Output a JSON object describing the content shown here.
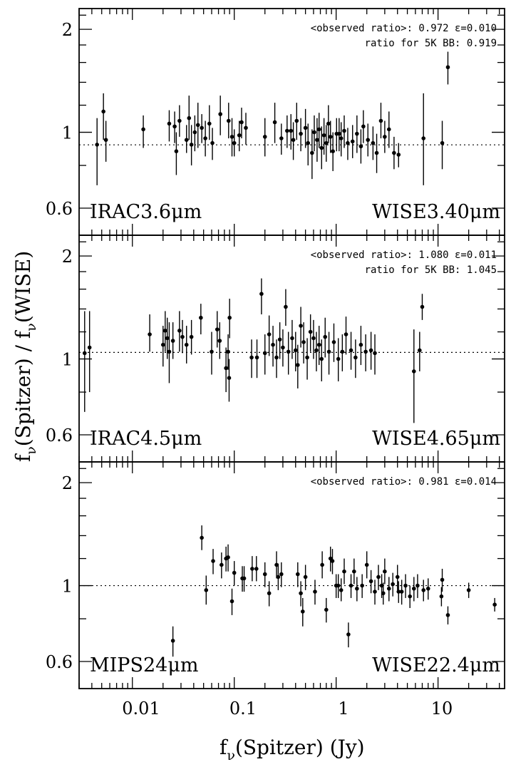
{
  "figure": {
    "xlabel": "f",
    "xlabel_sub": "ν",
    "xlabel_rest": "(Spitzer) (Jy)",
    "ylabel": "f",
    "ylabel_sub": "ν",
    "ylabel_mid": "(Spitzer) / f",
    "ylabel_sub2": "ν",
    "ylabel_rest": "(WISE)"
  },
  "chart_data": [
    {
      "type": "scatter",
      "panel": "top",
      "left_label": "IRAC3.6μm",
      "right_label": "WISE3.40μm",
      "annotation_line1": "<observed ratio>: 0.972 ε=0.010",
      "annotation_line2": "ratio for 5K BB: 0.919",
      "reference_line": 0.919,
      "xscale": "log",
      "yscale": "log",
      "xlim": [
        0.003,
        45
      ],
      "ylim": [
        0.5,
        2.3
      ],
      "yticklabels": [
        "0.6",
        "1",
        "2"
      ],
      "points": [
        [
          0.0045,
          0.92,
          0.7,
          1.1
        ],
        [
          0.0052,
          1.15,
          0.95,
          1.3
        ],
        [
          0.0055,
          0.95,
          0.82,
          1.08
        ],
        [
          0.0128,
          1.02,
          0.9,
          1.12
        ],
        [
          0.023,
          1.06,
          0.94,
          1.16
        ],
        [
          0.027,
          0.88,
          0.75,
          1.0
        ],
        [
          0.026,
          1.04,
          0.93,
          1.15
        ],
        [
          0.029,
          1.08,
          0.97,
          1.2
        ],
        [
          0.034,
          0.95,
          0.87,
          1.05
        ],
        [
          0.036,
          1.1,
          0.95,
          1.28
        ],
        [
          0.038,
          0.92,
          0.8,
          1.05
        ],
        [
          0.041,
          1.0,
          0.88,
          1.12
        ],
        [
          0.044,
          1.05,
          0.9,
          1.22
        ],
        [
          0.048,
          1.03,
          0.93,
          1.13
        ],
        [
          0.052,
          0.96,
          0.85,
          1.08
        ],
        [
          0.057,
          1.06,
          0.95,
          1.2
        ],
        [
          0.061,
          0.93,
          0.83,
          1.03
        ],
        [
          0.073,
          1.13,
          0.98,
          1.28
        ],
        [
          0.088,
          1.08,
          0.96,
          1.22
        ],
        [
          0.095,
          0.97,
          0.85,
          1.1
        ],
        [
          0.1,
          0.93,
          0.85,
          1.02
        ],
        [
          0.112,
          0.98,
          0.88,
          1.08
        ],
        [
          0.118,
          1.07,
          0.96,
          1.18
        ],
        [
          0.13,
          1.03,
          0.92,
          1.14
        ],
        [
          0.2,
          0.97,
          0.85,
          1.1
        ],
        [
          0.25,
          1.07,
          0.93,
          1.22
        ],
        [
          0.29,
          0.96,
          0.86,
          1.06
        ],
        [
          0.33,
          1.01,
          0.9,
          1.12
        ],
        [
          0.36,
          1.01,
          0.89,
          1.13
        ],
        [
          0.38,
          0.95,
          0.83,
          1.07
        ],
        [
          0.41,
          1.08,
          0.95,
          1.22
        ],
        [
          0.45,
          0.99,
          0.88,
          1.1
        ],
        [
          0.5,
          1.03,
          0.9,
          1.17
        ],
        [
          0.53,
          0.93,
          0.8,
          1.06
        ],
        [
          0.58,
          0.87,
          0.73,
          1.02
        ],
        [
          0.61,
          1.0,
          0.88,
          1.12
        ],
        [
          0.65,
          0.95,
          0.82,
          1.1
        ],
        [
          0.68,
          1.02,
          0.9,
          1.14
        ],
        [
          0.72,
          0.9,
          0.78,
          1.04
        ],
        [
          0.76,
          0.98,
          0.86,
          1.1
        ],
        [
          0.8,
          0.93,
          0.82,
          1.05
        ],
        [
          0.84,
          1.06,
          0.93,
          1.2
        ],
        [
          0.88,
          0.97,
          0.87,
          1.08
        ],
        [
          0.93,
          0.88,
          0.77,
          1.0
        ],
        [
          1.01,
          0.99,
          0.88,
          1.1
        ],
        [
          1.07,
          0.99,
          0.88,
          1.1
        ],
        [
          1.12,
          0.96,
          0.85,
          1.07
        ],
        [
          1.2,
          1.01,
          0.9,
          1.12
        ],
        [
          1.3,
          0.93,
          0.83,
          1.03
        ],
        [
          1.45,
          0.94,
          0.84,
          1.05
        ],
        [
          1.6,
          0.99,
          0.87,
          1.12
        ],
        [
          1.75,
          0.91,
          0.81,
          1.02
        ],
        [
          1.85,
          1.04,
          0.93,
          1.16
        ],
        [
          2.05,
          0.95,
          0.85,
          1.06
        ],
        [
          2.3,
          0.93,
          0.83,
          1.04
        ],
        [
          2.5,
          0.87,
          0.76,
          0.99
        ],
        [
          2.75,
          1.08,
          0.96,
          1.22
        ],
        [
          3.0,
          0.97,
          0.87,
          1.08
        ],
        [
          3.3,
          1.02,
          0.9,
          1.15
        ],
        [
          3.7,
          0.87,
          0.78,
          0.97
        ],
        [
          4.1,
          0.86,
          0.79,
          0.93
        ],
        [
          7.2,
          0.96,
          0.7,
          1.3
        ],
        [
          11.0,
          0.93,
          0.78,
          1.08
        ],
        [
          12.5,
          1.55,
          1.38,
          1.72
        ]
      ]
    },
    {
      "type": "scatter",
      "panel": "middle",
      "left_label": "IRAC4.5μm",
      "right_label": "WISE4.65μm",
      "annotation_line1": "<observed ratio>: 1.080 ε=0.011",
      "annotation_line2": "ratio for 5K BB: 1.045",
      "reference_line": 1.045,
      "xscale": "log",
      "yscale": "log",
      "xlim": [
        0.003,
        45
      ],
      "ylim": [
        0.5,
        2.3
      ],
      "yticklabels": [
        "0.6",
        "1",
        "2"
      ],
      "points": [
        [
          0.0034,
          1.04,
          0.7,
          1.38
        ],
        [
          0.0038,
          1.08,
          0.8,
          1.38
        ],
        [
          0.0148,
          1.18,
          1.05,
          1.35
        ],
        [
          0.02,
          1.1,
          0.95,
          1.25
        ],
        [
          0.021,
          1.21,
          1.05,
          1.38
        ],
        [
          0.022,
          1.15,
          1.0,
          1.32
        ],
        [
          0.023,
          1.05,
          0.85,
          1.28
        ],
        [
          0.025,
          1.13,
          1.0,
          1.28
        ],
        [
          0.029,
          1.21,
          1.05,
          1.38
        ],
        [
          0.031,
          1.16,
          1.04,
          1.3
        ],
        [
          0.034,
          1.1,
          0.97,
          1.25
        ],
        [
          0.038,
          1.16,
          1.03,
          1.3
        ],
        [
          0.047,
          1.32,
          1.18,
          1.45
        ],
        [
          0.06,
          1.05,
          0.9,
          1.2
        ],
        [
          0.068,
          1.22,
          1.08,
          1.38
        ],
        [
          0.072,
          1.13,
          1.0,
          1.28
        ],
        [
          0.083,
          0.94,
          0.8,
          1.08
        ],
        [
          0.087,
          1.05,
          0.93,
          1.18
        ],
        [
          0.09,
          1.32,
          1.15,
          1.5
        ],
        [
          0.089,
          0.88,
          0.75,
          1.0
        ],
        [
          0.148,
          1.01,
          0.88,
          1.14
        ],
        [
          0.167,
          1.01,
          0.88,
          1.14
        ],
        [
          0.185,
          1.55,
          1.35,
          1.72
        ],
        [
          0.2,
          1.04,
          0.9,
          1.18
        ],
        [
          0.22,
          1.18,
          1.02,
          1.34
        ],
        [
          0.24,
          1.1,
          0.95,
          1.25
        ],
        [
          0.26,
          1.01,
          0.88,
          1.14
        ],
        [
          0.28,
          1.14,
          1.0,
          1.28
        ],
        [
          0.3,
          1.08,
          0.95,
          1.22
        ],
        [
          0.32,
          1.42,
          1.25,
          1.6
        ],
        [
          0.34,
          1.05,
          0.9,
          1.2
        ],
        [
          0.37,
          1.15,
          1.0,
          1.3
        ],
        [
          0.4,
          1.06,
          0.92,
          1.2
        ],
        [
          0.42,
          0.96,
          0.82,
          1.1
        ],
        [
          0.45,
          1.25,
          1.08,
          1.42
        ],
        [
          0.48,
          1.12,
          0.97,
          1.28
        ],
        [
          0.52,
          1.01,
          0.87,
          1.15
        ],
        [
          0.56,
          1.2,
          1.05,
          1.35
        ],
        [
          0.6,
          1.15,
          1.0,
          1.3
        ],
        [
          0.64,
          1.06,
          0.92,
          1.2
        ],
        [
          0.68,
          1.1,
          0.96,
          1.25
        ],
        [
          0.72,
          1.0,
          0.86,
          1.14
        ],
        [
          0.78,
          1.16,
          1.01,
          1.32
        ],
        [
          0.85,
          1.05,
          0.9,
          1.2
        ],
        [
          0.95,
          1.12,
          0.98,
          1.27
        ],
        [
          1.05,
          1.0,
          0.86,
          1.15
        ],
        [
          1.15,
          1.05,
          0.92,
          1.18
        ],
        [
          1.25,
          1.18,
          1.03,
          1.33
        ],
        [
          1.4,
          1.06,
          0.93,
          1.2
        ],
        [
          1.55,
          1.01,
          0.88,
          1.14
        ],
        [
          1.75,
          1.1,
          0.96,
          1.25
        ],
        [
          1.95,
          1.05,
          0.92,
          1.18
        ],
        [
          2.2,
          1.06,
          0.93,
          1.2
        ],
        [
          2.4,
          1.04,
          0.9,
          1.18
        ],
        [
          5.8,
          0.92,
          0.65,
          1.22
        ],
        [
          6.6,
          1.06,
          0.92,
          1.2
        ],
        [
          7.0,
          1.42,
          1.3,
          1.55
        ]
      ]
    },
    {
      "type": "scatter",
      "panel": "bottom",
      "left_label": "MIPS24μm",
      "right_label": "WISE22.4μm",
      "annotation_line1": "<observed ratio>: 0.981 ε=0.014",
      "reference_line": 1.0,
      "xscale": "log",
      "yscale": "log",
      "xlim": [
        0.003,
        45
      ],
      "ylim": [
        0.5,
        2.3
      ],
      "yticklabels": [
        "0.6",
        "1",
        "2"
      ],
      "points": [
        [
          0.025,
          0.69,
          0.62,
          0.76
        ],
        [
          0.048,
          1.38,
          1.27,
          1.5
        ],
        [
          0.053,
          0.97,
          0.88,
          1.07
        ],
        [
          0.062,
          1.18,
          1.08,
          1.28
        ],
        [
          0.075,
          1.15,
          1.05,
          1.25
        ],
        [
          0.083,
          1.2,
          1.1,
          1.3
        ],
        [
          0.087,
          1.21,
          1.1,
          1.32
        ],
        [
          0.095,
          0.9,
          0.82,
          0.98
        ],
        [
          0.1,
          1.09,
          1.0,
          1.18
        ],
        [
          0.12,
          1.05,
          0.96,
          1.14
        ],
        [
          0.125,
          1.05,
          0.96,
          1.14
        ],
        [
          0.15,
          1.12,
          1.03,
          1.22
        ],
        [
          0.165,
          1.12,
          1.03,
          1.22
        ],
        [
          0.2,
          1.08,
          0.99,
          1.17
        ],
        [
          0.26,
          1.15,
          1.05,
          1.26
        ],
        [
          0.27,
          1.06,
          0.97,
          1.16
        ],
        [
          0.29,
          1.08,
          0.99,
          1.17
        ],
        [
          0.22,
          0.95,
          0.87,
          1.03
        ],
        [
          0.42,
          1.08,
          0.99,
          1.17
        ],
        [
          0.45,
          0.95,
          0.87,
          1.03
        ],
        [
          0.47,
          0.84,
          0.76,
          0.92
        ],
        [
          0.5,
          1.06,
          0.97,
          1.15
        ],
        [
          0.62,
          0.96,
          0.88,
          1.04
        ],
        [
          0.73,
          1.15,
          1.05,
          1.26
        ],
        [
          0.8,
          0.85,
          0.78,
          0.92
        ],
        [
          0.88,
          1.2,
          1.1,
          1.3
        ],
        [
          0.92,
          1.18,
          1.08,
          1.28
        ],
        [
          1.0,
          1.0,
          0.92,
          1.08
        ],
        [
          1.05,
          1.0,
          0.92,
          1.08
        ],
        [
          1.12,
          0.97,
          0.9,
          1.05
        ],
        [
          1.2,
          1.1,
          1.01,
          1.2
        ],
        [
          1.32,
          0.72,
          0.66,
          0.78
        ],
        [
          1.4,
          1.0,
          0.92,
          1.08
        ],
        [
          1.5,
          1.1,
          1.01,
          1.2
        ],
        [
          1.6,
          0.98,
          0.9,
          1.06
        ],
        [
          1.8,
          1.0,
          0.92,
          1.08
        ],
        [
          2.0,
          1.15,
          1.05,
          1.26
        ],
        [
          2.2,
          1.03,
          0.95,
          1.11
        ],
        [
          2.4,
          0.96,
          0.88,
          1.04
        ],
        [
          2.6,
          1.06,
          0.97,
          1.15
        ],
        [
          2.8,
          1.0,
          0.92,
          1.08
        ],
        [
          3.0,
          1.1,
          1.01,
          1.2
        ],
        [
          3.3,
          0.98,
          0.9,
          1.06
        ],
        [
          3.6,
          1.01,
          0.93,
          1.09
        ],
        [
          4.0,
          1.06,
          0.97,
          1.15
        ],
        [
          4.4,
          0.96,
          0.88,
          1.04
        ],
        [
          4.8,
          1.0,
          0.92,
          1.08
        ],
        [
          5.3,
          0.93,
          0.86,
          1.0
        ],
        [
          5.8,
          0.98,
          0.9,
          1.06
        ],
        [
          6.3,
          1.0,
          0.92,
          1.08
        ],
        [
          7.2,
          0.97,
          0.9,
          1.04
        ],
        [
          8.0,
          0.98,
          0.91,
          1.05
        ],
        [
          11.0,
          1.04,
          0.96,
          1.12
        ],
        [
          12.5,
          0.82,
          0.77,
          0.87
        ],
        [
          20.0,
          0.97,
          0.92,
          1.02
        ],
        [
          36.0,
          0.88,
          0.84,
          0.92
        ],
        [
          2.9,
          0.95,
          0.88,
          1.02
        ],
        [
          4.1,
          0.96,
          0.89,
          1.03
        ],
        [
          10.8,
          0.93,
          0.87,
          0.99
        ]
      ]
    }
  ]
}
